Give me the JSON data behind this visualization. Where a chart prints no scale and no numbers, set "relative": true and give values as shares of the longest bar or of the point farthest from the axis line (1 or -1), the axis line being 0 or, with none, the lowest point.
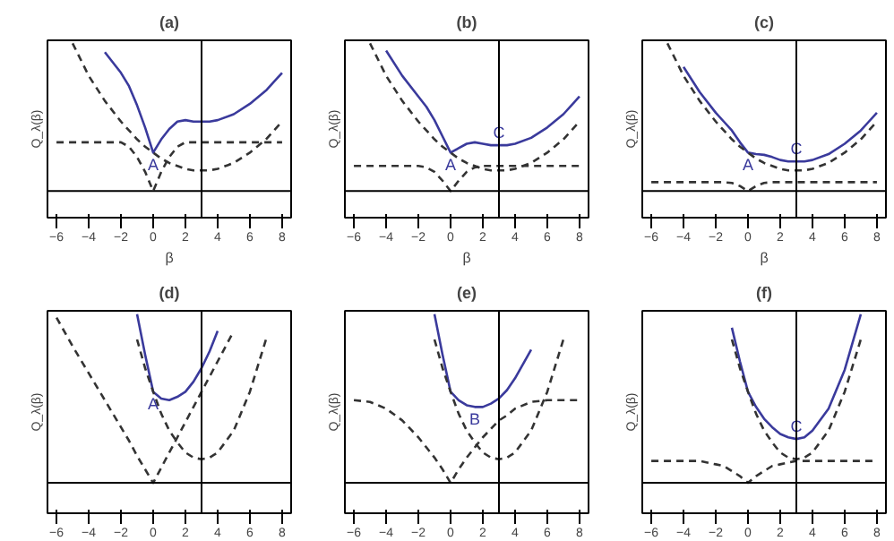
{
  "chart_data": [
    {
      "type": "line",
      "title": "(a)",
      "xlabel": "β",
      "ylabel": "Q_λ(β)",
      "relative": true,
      "tick_labels": "x",
      "line_style": "solid",
      "x": [
        -6,
        -5,
        -4,
        -3,
        -2,
        -1.5,
        -1,
        -0.5,
        0,
        0.5,
        1,
        1.5,
        2,
        2.5,
        3,
        3.5,
        4,
        5,
        6,
        7,
        7.5,
        8
      ],
      "xlim": [
        -6.56,
        8.56
      ],
      "xticks": [
        -6,
        -4,
        -2,
        0,
        2,
        4,
        6,
        8
      ],
      "series": [
        {
          "color": "#3a3a9c",
          "values": [
            null,
            null,
            null,
            0.94,
            0.8,
            0.71,
            0.58,
            0.43,
            0.26,
            0.35,
            0.42,
            0.47,
            0.48,
            0.47,
            0.47,
            0.47,
            0.48,
            0.52,
            0.59,
            0.68,
            0.74,
            0.8
          ]
        },
        {
          "color": "#333333",
          "line_style": "dashed",
          "values": [
            null,
            1.0,
            0.78,
            0.61,
            0.47,
            0.41,
            0.35,
            0.3,
            0.26,
            0.22,
            0.19,
            0.17,
            0.15,
            0.14,
            0.14,
            0.14,
            0.15,
            0.19,
            0.26,
            0.35,
            0.41,
            0.47
          ]
        },
        {
          "color": "#333333",
          "line_style": "dashed",
          "values": [
            0.33,
            0.33,
            0.33,
            0.33,
            0.33,
            0.3,
            0.23,
            0.13,
            0,
            0.13,
            0.23,
            0.3,
            0.33,
            0.33,
            0.33,
            0.33,
            0.33,
            0.33,
            0.33,
            0.33,
            0.33,
            0.33
          ]
        }
      ],
      "ref_lines": [
        {
          "axis": "x",
          "value": 3
        }
      ],
      "annotations": [
        {
          "text": "A",
          "x": 0,
          "y": 0.26
        }
      ]
    },
    {
      "type": "line",
      "title": "(b)",
      "xlabel": "β",
      "ylabel": "Q_λ(β)",
      "relative": true,
      "tick_labels": "x",
      "line_style": "solid",
      "x": [
        -6,
        -5,
        -4,
        -3,
        -2,
        -1.5,
        -1,
        -0.5,
        0,
        0.5,
        1,
        1.5,
        2,
        2.5,
        3,
        3.5,
        4,
        5,
        6,
        7,
        7.5,
        8
      ],
      "xlim": [
        -6.56,
        8.56
      ],
      "xticks": [
        -6,
        -4,
        -2,
        0,
        2,
        4,
        6,
        8
      ],
      "series": [
        {
          "color": "#3a3a9c",
          "values": [
            null,
            null,
            0.95,
            0.78,
            0.64,
            0.57,
            0.48,
            0.37,
            0.26,
            0.29,
            0.32,
            0.33,
            0.32,
            0.31,
            0.31,
            0.31,
            0.32,
            0.36,
            0.43,
            0.52,
            0.58,
            0.64
          ]
        },
        {
          "color": "#333333",
          "line_style": "dashed",
          "values": [
            null,
            1.0,
            0.78,
            0.61,
            0.47,
            0.41,
            0.35,
            0.3,
            0.26,
            0.22,
            0.19,
            0.17,
            0.15,
            0.14,
            0.14,
            0.14,
            0.15,
            0.19,
            0.26,
            0.35,
            0.41,
            0.47
          ]
        },
        {
          "color": "#333333",
          "line_style": "dashed",
          "values": [
            0.17,
            0.17,
            0.17,
            0.17,
            0.17,
            0.16,
            0.13,
            0.07,
            0,
            0.07,
            0.13,
            0.16,
            0.17,
            0.17,
            0.17,
            0.17,
            0.17,
            0.17,
            0.17,
            0.17,
            0.17,
            0.17
          ]
        }
      ],
      "ref_lines": [
        {
          "axis": "x",
          "value": 3
        }
      ],
      "annotations": [
        {
          "text": "A",
          "x": 0,
          "y": 0.26
        },
        {
          "text": "C",
          "x": 3,
          "y": 0.31
        }
      ]
    },
    {
      "type": "line",
      "title": "(c)",
      "xlabel": "β",
      "ylabel": "Q_λ(β)",
      "relative": true,
      "tick_labels": "x",
      "line_style": "solid",
      "x": [
        -6,
        -5,
        -4,
        -3,
        -2,
        -1.5,
        -1,
        -0.5,
        0,
        0.5,
        1,
        1.5,
        2,
        2.5,
        3,
        3.5,
        4,
        5,
        6,
        7,
        7.5,
        8
      ],
      "xlim": [
        -6.56,
        8.56
      ],
      "xticks": [
        -6,
        -4,
        -2,
        0,
        2,
        4,
        6,
        8
      ],
      "series": [
        {
          "color": "#3a3a9c",
          "values": [
            null,
            null,
            0.84,
            0.67,
            0.53,
            0.47,
            0.41,
            0.33,
            0.26,
            0.25,
            0.245,
            0.23,
            0.21,
            0.2,
            0.2,
            0.2,
            0.21,
            0.25,
            0.32,
            0.41,
            0.47,
            0.53
          ]
        },
        {
          "color": "#333333",
          "line_style": "dashed",
          "values": [
            null,
            1.0,
            0.78,
            0.61,
            0.47,
            0.41,
            0.35,
            0.3,
            0.26,
            0.22,
            0.19,
            0.17,
            0.15,
            0.14,
            0.14,
            0.14,
            0.15,
            0.19,
            0.26,
            0.35,
            0.41,
            0.47
          ]
        },
        {
          "color": "#333333",
          "line_style": "dashed",
          "values": [
            0.06,
            0.06,
            0.06,
            0.06,
            0.06,
            0.06,
            0.055,
            0.034,
            0,
            0.034,
            0.055,
            0.06,
            0.06,
            0.06,
            0.06,
            0.06,
            0.06,
            0.06,
            0.06,
            0.06,
            0.06,
            0.06
          ]
        }
      ],
      "ref_lines": [
        {
          "axis": "x",
          "value": 3
        }
      ],
      "annotations": [
        {
          "text": "A",
          "x": 0,
          "y": 0.26
        },
        {
          "text": "C",
          "x": 3,
          "y": 0.2
        }
      ]
    },
    {
      "type": "line",
      "title": "(d)",
      "ylabel": "Q_λ(β)",
      "relative": true,
      "tick_labels": "x",
      "line_style": "solid",
      "x": [
        -6,
        -5,
        -4,
        -3,
        -2,
        -1.5,
        -1,
        -0.5,
        0,
        0.5,
        1,
        1.5,
        2,
        2.5,
        3,
        3.5,
        4,
        5,
        6,
        7
      ],
      "xlim": [
        -6.56,
        8.56
      ],
      "xticks": [
        -6,
        -4,
        -2,
        0,
        2,
        4,
        6,
        8
      ],
      "series": [
        {
          "color": "#3a3a9c",
          "values": [
            null,
            null,
            null,
            null,
            null,
            null,
            1.0,
            0.76,
            0.54,
            0.5,
            0.49,
            0.51,
            0.54,
            0.6,
            0.68,
            0.78,
            0.9,
            null,
            null,
            null
          ]
        },
        {
          "color": "#333333",
          "line_style": "dashed",
          "values": [
            null,
            null,
            null,
            null,
            null,
            null,
            0.85,
            0.68,
            0.54,
            0.41,
            0.31,
            0.24,
            0.18,
            0.15,
            0.14,
            0.15,
            0.18,
            0.31,
            0.54,
            0.85
          ]
        },
        {
          "color": "#333333",
          "line_style": "dashed",
          "values": [
            0.98,
            0.81,
            0.65,
            0.49,
            0.33,
            0.25,
            0.16,
            0.08,
            0,
            0.09,
            0.18,
            0.27,
            0.36,
            0.45,
            0.54,
            0.63,
            0.72,
            0.9,
            null,
            null
          ]
        }
      ],
      "ref_lines": [
        {
          "axis": "x",
          "value": 3
        }
      ],
      "annotations": [
        {
          "text": "A",
          "x": 0,
          "y": 0.54
        }
      ]
    },
    {
      "type": "line",
      "title": "(e)",
      "ylabel": "Q_λ(β)",
      "relative": true,
      "tick_labels": "x",
      "line_style": "solid",
      "x": [
        -6,
        -5,
        -4,
        -3,
        -2,
        -1.5,
        -1,
        -0.5,
        0,
        0.5,
        1,
        1.5,
        2,
        2.5,
        3,
        3.5,
        4,
        5,
        6,
        7,
        7.5,
        8
      ],
      "xlim": [
        -6.56,
        8.56
      ],
      "xticks": [
        -6,
        -4,
        -2,
        0,
        2,
        4,
        6,
        8
      ],
      "series": [
        {
          "color": "#3a3a9c",
          "values": [
            null,
            null,
            null,
            null,
            null,
            null,
            1.0,
            0.76,
            0.54,
            0.49,
            0.46,
            0.45,
            0.45,
            0.47,
            0.5,
            0.55,
            0.62,
            0.79,
            null,
            null,
            null,
            null
          ]
        },
        {
          "color": "#333333",
          "line_style": "dashed",
          "values": [
            null,
            null,
            null,
            null,
            null,
            null,
            0.85,
            0.68,
            0.54,
            0.41,
            0.31,
            0.24,
            0.18,
            0.15,
            0.14,
            0.15,
            0.18,
            0.31,
            0.54,
            0.85,
            null,
            null
          ]
        },
        {
          "color": "#333333",
          "line_style": "dashed",
          "values": [
            0.49,
            0.48,
            0.44,
            0.37,
            0.27,
            0.21,
            0.15,
            0.08,
            0,
            0.08,
            0.15,
            0.21,
            0.27,
            0.32,
            0.37,
            0.4,
            0.44,
            0.48,
            0.49,
            0.49,
            0.49,
            0.49
          ]
        }
      ],
      "ref_lines": [
        {
          "axis": "x",
          "value": 3
        }
      ],
      "annotations": [
        {
          "text": "B",
          "x": 1.5,
          "y": 0.45
        }
      ]
    },
    {
      "type": "line",
      "title": "(f)",
      "ylabel": "Q_λ(β)",
      "relative": true,
      "tick_labels": "x",
      "line_style": "solid",
      "x": [
        -6,
        -5,
        -4,
        -3,
        -2,
        -1.5,
        -1,
        -0.5,
        0,
        0.5,
        1,
        1.5,
        2,
        2.5,
        3,
        3.5,
        4,
        5,
        6,
        7,
        7.5,
        8
      ],
      "xlim": [
        -6.56,
        8.56
      ],
      "xticks": [
        -6,
        -4,
        -2,
        0,
        2,
        4,
        6,
        8
      ],
      "series": [
        {
          "color": "#3a3a9c",
          "values": [
            null,
            null,
            null,
            null,
            null,
            null,
            0.92,
            0.72,
            0.54,
            0.45,
            0.38,
            0.33,
            0.29,
            0.27,
            0.26,
            0.27,
            0.31,
            0.44,
            0.67,
            1.0,
            null,
            null
          ]
        },
        {
          "color": "#333333",
          "line_style": "dashed",
          "values": [
            null,
            null,
            null,
            null,
            null,
            null,
            0.85,
            0.68,
            0.54,
            0.41,
            0.31,
            0.24,
            0.18,
            0.15,
            0.14,
            0.15,
            0.18,
            0.31,
            0.54,
            0.85,
            null,
            null
          ]
        },
        {
          "color": "#333333",
          "line_style": "dashed",
          "values": [
            0.13,
            0.13,
            0.13,
            0.13,
            0.11,
            0.1,
            0.07,
            0.04,
            0,
            0.04,
            0.07,
            0.1,
            0.11,
            0.12,
            0.13,
            0.13,
            0.13,
            0.13,
            0.13,
            0.13,
            0.13,
            0.13
          ]
        }
      ],
      "ref_lines": [
        {
          "axis": "x",
          "value": 3
        }
      ],
      "annotations": [
        {
          "text": "C",
          "x": 3,
          "y": 0.26
        }
      ]
    }
  ]
}
